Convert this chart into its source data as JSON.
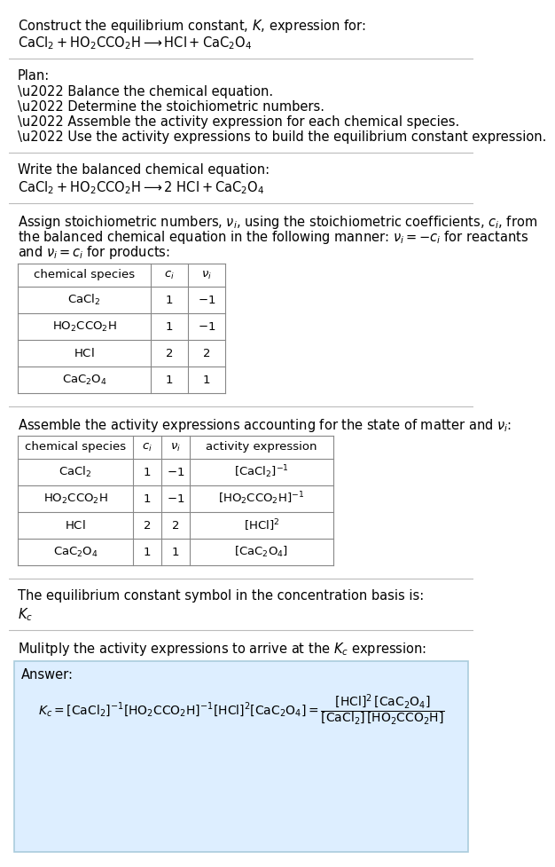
{
  "bg_color": "#ffffff",
  "title_line1": "Construct the equilibrium constant, $K$, expression for:",
  "title_line2": "$\\mathrm{CaCl_2 + HO_2CCO_2H \\longrightarrow HCl + CaC_2O_4}$",
  "plan_header": "Plan:",
  "plan_items": [
    "\\u2022 Balance the chemical equation.",
    "\\u2022 Determine the stoichiometric numbers.",
    "\\u2022 Assemble the activity expression for each chemical species.",
    "\\u2022 Use the activity expressions to build the equilibrium constant expression."
  ],
  "balanced_header": "Write the balanced chemical equation:",
  "balanced_eq": "$\\mathrm{CaCl_2 + HO_2CCO_2H \\longrightarrow 2\\ HCl + CaC_2O_4}$",
  "stoich_lines": [
    "Assign stoichiometric numbers, $\\nu_i$, using the stoichiometric coefficients, $c_i$, from",
    "the balanced chemical equation in the following manner: $\\nu_i = -c_i$ for reactants",
    "and $\\nu_i = c_i$ for products:"
  ],
  "table1_cols": [
    "chemical species",
    "$c_i$",
    "$\\nu_i$"
  ],
  "table1_rows": [
    [
      "$\\mathrm{CaCl_2}$",
      "1",
      "$-1$"
    ],
    [
      "$\\mathrm{HO_2CCO_2H}$",
      "1",
      "$-1$"
    ],
    [
      "$\\mathrm{HCl}$",
      "2",
      "2"
    ],
    [
      "$\\mathrm{CaC_2O_4}$",
      "1",
      "1"
    ]
  ],
  "activity_header": "Assemble the activity expressions accounting for the state of matter and $\\nu_i$:",
  "table2_cols": [
    "chemical species",
    "$c_i$",
    "$\\nu_i$",
    "activity expression"
  ],
  "table2_rows": [
    [
      "$\\mathrm{CaCl_2}$",
      "1",
      "$-1$",
      "$[\\mathrm{CaCl_2}]^{-1}$"
    ],
    [
      "$\\mathrm{HO_2CCO_2H}$",
      "1",
      "$-1$",
      "$[\\mathrm{HO_2CCO_2H}]^{-1}$"
    ],
    [
      "$\\mathrm{HCl}$",
      "2",
      "2",
      "$[\\mathrm{HCl}]^{2}$"
    ],
    [
      "$\\mathrm{CaC_2O_4}$",
      "1",
      "1",
      "$[\\mathrm{CaC_2O_4}]$"
    ]
  ],
  "Kc_header": "The equilibrium constant symbol in the concentration basis is:",
  "Kc_symbol": "$K_c$",
  "multiply_header": "Mulitply the activity expressions to arrive at the $K_c$ expression:",
  "answer_label": "Answer:",
  "answer_box_color": "#ddeeff",
  "answer_box_border": "#aaccdd"
}
